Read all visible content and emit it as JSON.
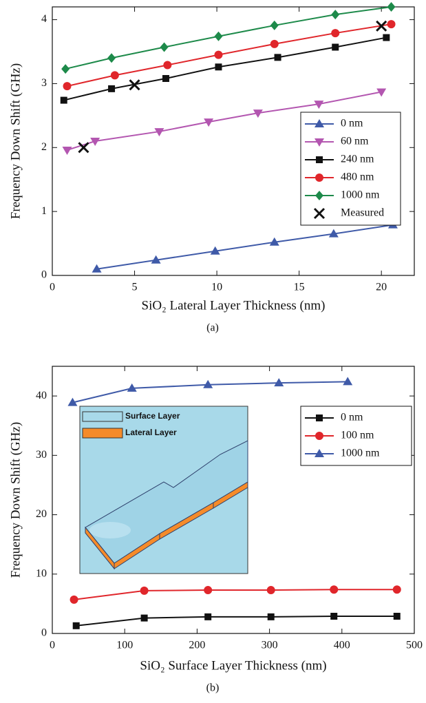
{
  "chart_data": [
    {
      "type": "line",
      "caption": "(a)",
      "xlabel": "SiO₂ Lateral Layer Thickness (nm)",
      "ylabel": "Frequency Down Shift (GHz)",
      "xlim": [
        0,
        22
      ],
      "ylim": [
        0,
        4.2
      ],
      "xticks": [
        0,
        5,
        10,
        15,
        20
      ],
      "yticks": [
        0,
        1,
        2,
        3,
        4
      ],
      "legend": "center right",
      "series": [
        {
          "name": "0 nm",
          "color": "#3f5aa8",
          "marker": "triangle-up",
          "line": true,
          "x": [
            2.7,
            6.3,
            9.9,
            13.5,
            17.1,
            20.7
          ],
          "values": [
            0.1,
            0.24,
            0.38,
            0.52,
            0.65,
            0.79
          ]
        },
        {
          "name": "60 nm",
          "color": "#b356b0",
          "marker": "triangle-down",
          "line": true,
          "x": [
            0.9,
            2.6,
            6.5,
            9.5,
            12.5,
            16.2,
            20
          ],
          "values": [
            1.96,
            2.1,
            2.25,
            2.4,
            2.54,
            2.68,
            2.87
          ]
        },
        {
          "name": "240 nm",
          "color": "#111111",
          "marker": "square",
          "line": true,
          "x": [
            0.7,
            3.6,
            6.9,
            10.1,
            13.7,
            17.2,
            20.3
          ],
          "values": [
            2.74,
            2.92,
            3.08,
            3.26,
            3.41,
            3.57,
            3.72
          ]
        },
        {
          "name": "480 nm",
          "color": "#e0262b",
          "marker": "circle",
          "line": true,
          "x": [
            0.9,
            3.8,
            7.0,
            10.1,
            13.5,
            17.2,
            20.6
          ],
          "values": [
            2.96,
            3.13,
            3.29,
            3.45,
            3.62,
            3.79,
            3.93
          ]
        },
        {
          "name": "1000 nm",
          "color": "#1d8a4a",
          "marker": "diamond",
          "line": true,
          "x": [
            0.8,
            3.6,
            6.8,
            10.1,
            13.5,
            17.2,
            20.6
          ],
          "values": [
            3.23,
            3.4,
            3.57,
            3.74,
            3.91,
            4.08,
            4.2
          ]
        },
        {
          "name": "Measured",
          "color": "#111111",
          "marker": "x",
          "line": false,
          "x": [
            1.9,
            5.0,
            20
          ],
          "values": [
            2.0,
            2.98,
            3.9
          ]
        }
      ]
    },
    {
      "type": "line",
      "caption": "(b)",
      "xlabel": "SiO₂ Surface Layer Thickness (nm)",
      "ylabel": "Frequency Down Shift (GHz)",
      "xlim": [
        0,
        500
      ],
      "ylim": [
        0,
        45
      ],
      "xticks": [
        0,
        100,
        200,
        300,
        400,
        500
      ],
      "yticks": [
        0,
        10,
        20,
        30,
        40
      ],
      "legend": "upper right",
      "inset_labels": [
        "Surface Layer",
        "Lateral Layer"
      ],
      "series": [
        {
          "name": "0 nm",
          "color": "#111111",
          "marker": "square",
          "line": true,
          "x": [
            33,
            127,
            215,
            302,
            389,
            476
          ],
          "values": [
            1.3,
            2.6,
            2.8,
            2.8,
            2.9,
            2.9
          ]
        },
        {
          "name": "100 nm",
          "color": "#e0262b",
          "marker": "circle",
          "line": true,
          "x": [
            30,
            127,
            215,
            302,
            389,
            476
          ],
          "values": [
            5.7,
            7.2,
            7.3,
            7.3,
            7.4,
            7.4
          ]
        },
        {
          "name": "1000 nm",
          "color": "#3f5aa8",
          "marker": "triangle-up",
          "line": true,
          "x": [
            28,
            110,
            215,
            313,
            408
          ],
          "values": [
            38.9,
            41.3,
            41.9,
            42.2,
            42.4
          ]
        }
      ]
    }
  ]
}
